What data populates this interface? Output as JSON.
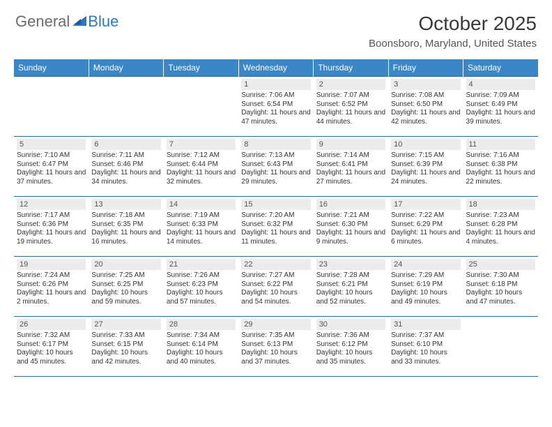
{
  "brand": {
    "part1": "General",
    "part2": "Blue"
  },
  "title": "October 2025",
  "location": "Boonsboro, Maryland, United States",
  "headers": [
    "Sunday",
    "Monday",
    "Tuesday",
    "Wednesday",
    "Thursday",
    "Friday",
    "Saturday"
  ],
  "colors": {
    "header_bg": "#3b86c7",
    "header_text": "#ffffff",
    "border": "#2b6aa3",
    "daynum_bg": "#ececec",
    "logo_gray": "#6b6b6b",
    "logo_blue": "#2f78bd"
  },
  "weeks": [
    [
      {
        "empty": true
      },
      {
        "empty": true
      },
      {
        "empty": true
      },
      {
        "day": "1",
        "sunrise": "Sunrise: 7:06 AM",
        "sunset": "Sunset: 6:54 PM",
        "daylight": "Daylight: 11 hours and 47 minutes."
      },
      {
        "day": "2",
        "sunrise": "Sunrise: 7:07 AM",
        "sunset": "Sunset: 6:52 PM",
        "daylight": "Daylight: 11 hours and 44 minutes."
      },
      {
        "day": "3",
        "sunrise": "Sunrise: 7:08 AM",
        "sunset": "Sunset: 6:50 PM",
        "daylight": "Daylight: 11 hours and 42 minutes."
      },
      {
        "day": "4",
        "sunrise": "Sunrise: 7:09 AM",
        "sunset": "Sunset: 6:49 PM",
        "daylight": "Daylight: 11 hours and 39 minutes."
      }
    ],
    [
      {
        "day": "5",
        "sunrise": "Sunrise: 7:10 AM",
        "sunset": "Sunset: 6:47 PM",
        "daylight": "Daylight: 11 hours and 37 minutes."
      },
      {
        "day": "6",
        "sunrise": "Sunrise: 7:11 AM",
        "sunset": "Sunset: 6:46 PM",
        "daylight": "Daylight: 11 hours and 34 minutes."
      },
      {
        "day": "7",
        "sunrise": "Sunrise: 7:12 AM",
        "sunset": "Sunset: 6:44 PM",
        "daylight": "Daylight: 11 hours and 32 minutes."
      },
      {
        "day": "8",
        "sunrise": "Sunrise: 7:13 AM",
        "sunset": "Sunset: 6:43 PM",
        "daylight": "Daylight: 11 hours and 29 minutes."
      },
      {
        "day": "9",
        "sunrise": "Sunrise: 7:14 AM",
        "sunset": "Sunset: 6:41 PM",
        "daylight": "Daylight: 11 hours and 27 minutes."
      },
      {
        "day": "10",
        "sunrise": "Sunrise: 7:15 AM",
        "sunset": "Sunset: 6:39 PM",
        "daylight": "Daylight: 11 hours and 24 minutes."
      },
      {
        "day": "11",
        "sunrise": "Sunrise: 7:16 AM",
        "sunset": "Sunset: 6:38 PM",
        "daylight": "Daylight: 11 hours and 22 minutes."
      }
    ],
    [
      {
        "day": "12",
        "sunrise": "Sunrise: 7:17 AM",
        "sunset": "Sunset: 6:36 PM",
        "daylight": "Daylight: 11 hours and 19 minutes."
      },
      {
        "day": "13",
        "sunrise": "Sunrise: 7:18 AM",
        "sunset": "Sunset: 6:35 PM",
        "daylight": "Daylight: 11 hours and 16 minutes."
      },
      {
        "day": "14",
        "sunrise": "Sunrise: 7:19 AM",
        "sunset": "Sunset: 6:33 PM",
        "daylight": "Daylight: 11 hours and 14 minutes."
      },
      {
        "day": "15",
        "sunrise": "Sunrise: 7:20 AM",
        "sunset": "Sunset: 6:32 PM",
        "daylight": "Daylight: 11 hours and 11 minutes."
      },
      {
        "day": "16",
        "sunrise": "Sunrise: 7:21 AM",
        "sunset": "Sunset: 6:30 PM",
        "daylight": "Daylight: 11 hours and 9 minutes."
      },
      {
        "day": "17",
        "sunrise": "Sunrise: 7:22 AM",
        "sunset": "Sunset: 6:29 PM",
        "daylight": "Daylight: 11 hours and 6 minutes."
      },
      {
        "day": "18",
        "sunrise": "Sunrise: 7:23 AM",
        "sunset": "Sunset: 6:28 PM",
        "daylight": "Daylight: 11 hours and 4 minutes."
      }
    ],
    [
      {
        "day": "19",
        "sunrise": "Sunrise: 7:24 AM",
        "sunset": "Sunset: 6:26 PM",
        "daylight": "Daylight: 11 hours and 2 minutes."
      },
      {
        "day": "20",
        "sunrise": "Sunrise: 7:25 AM",
        "sunset": "Sunset: 6:25 PM",
        "daylight": "Daylight: 10 hours and 59 minutes."
      },
      {
        "day": "21",
        "sunrise": "Sunrise: 7:26 AM",
        "sunset": "Sunset: 6:23 PM",
        "daylight": "Daylight: 10 hours and 57 minutes."
      },
      {
        "day": "22",
        "sunrise": "Sunrise: 7:27 AM",
        "sunset": "Sunset: 6:22 PM",
        "daylight": "Daylight: 10 hours and 54 minutes."
      },
      {
        "day": "23",
        "sunrise": "Sunrise: 7:28 AM",
        "sunset": "Sunset: 6:21 PM",
        "daylight": "Daylight: 10 hours and 52 minutes."
      },
      {
        "day": "24",
        "sunrise": "Sunrise: 7:29 AM",
        "sunset": "Sunset: 6:19 PM",
        "daylight": "Daylight: 10 hours and 49 minutes."
      },
      {
        "day": "25",
        "sunrise": "Sunrise: 7:30 AM",
        "sunset": "Sunset: 6:18 PM",
        "daylight": "Daylight: 10 hours and 47 minutes."
      }
    ],
    [
      {
        "day": "26",
        "sunrise": "Sunrise: 7:32 AM",
        "sunset": "Sunset: 6:17 PM",
        "daylight": "Daylight: 10 hours and 45 minutes."
      },
      {
        "day": "27",
        "sunrise": "Sunrise: 7:33 AM",
        "sunset": "Sunset: 6:15 PM",
        "daylight": "Daylight: 10 hours and 42 minutes."
      },
      {
        "day": "28",
        "sunrise": "Sunrise: 7:34 AM",
        "sunset": "Sunset: 6:14 PM",
        "daylight": "Daylight: 10 hours and 40 minutes."
      },
      {
        "day": "29",
        "sunrise": "Sunrise: 7:35 AM",
        "sunset": "Sunset: 6:13 PM",
        "daylight": "Daylight: 10 hours and 37 minutes."
      },
      {
        "day": "30",
        "sunrise": "Sunrise: 7:36 AM",
        "sunset": "Sunset: 6:12 PM",
        "daylight": "Daylight: 10 hours and 35 minutes."
      },
      {
        "day": "31",
        "sunrise": "Sunrise: 7:37 AM",
        "sunset": "Sunset: 6:10 PM",
        "daylight": "Daylight: 10 hours and 33 minutes."
      },
      {
        "empty": true
      }
    ]
  ]
}
